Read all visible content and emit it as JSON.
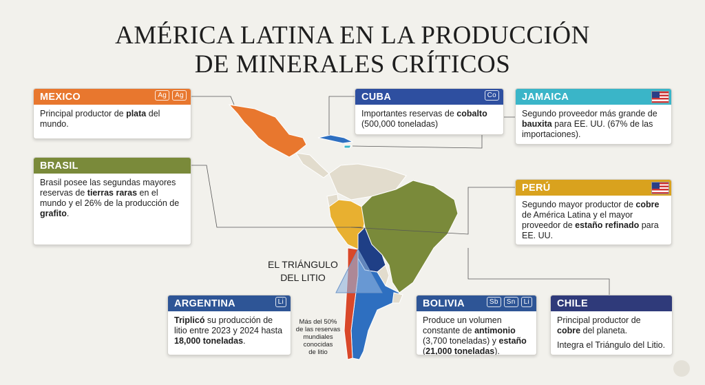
{
  "title": [
    "AMÉRICA LATINA EN LA PRODUCCIÓN",
    "DE MINERALES CRÍTICOS"
  ],
  "triangle": {
    "label": [
      "EL TRIÁNGULO",
      "DEL LITIO"
    ],
    "note": [
      "Más del 50%",
      "de las reservas",
      "mundiales",
      "conocidas",
      "de litio"
    ]
  },
  "cards": [
    {
      "title": "MEXICO",
      "color": "#e8772e",
      "icons": [
        "Ag",
        "Ag"
      ],
      "body": [
        [
          {
            "text": "Principal productor de ",
            "bold": false
          },
          {
            "text": "plata",
            "bold": true
          },
          {
            "text": " del mundo.",
            "bold": false
          }
        ]
      ]
    },
    {
      "title": "BRASIL",
      "color": "#7a8a3a",
      "icons": [],
      "body": [
        [
          {
            "text": "Brasil posee las segundas mayores reservas de ",
            "bold": false
          },
          {
            "text": "tierras raras",
            "bold": true
          },
          {
            "text": " en el mundo y el 26% de la producción de ",
            "bold": false
          },
          {
            "text": "grafito",
            "bold": true
          },
          {
            "text": ".",
            "bold": false
          }
        ]
      ]
    },
    {
      "title": "CUBA",
      "color": "#2e4fa0",
      "icons": [
        "Co"
      ],
      "body": [
        [
          {
            "text": "Importantes reservas de ",
            "bold": false
          },
          {
            "text": "cobalto",
            "bold": true
          },
          {
            "text": " (500,000 toneladas)",
            "bold": false
          }
        ]
      ]
    },
    {
      "title": "JAMAICA",
      "color": "#3ab5c8",
      "icons": [],
      "body": [
        [
          {
            "text": "Segundo proveedor más grande de ",
            "bold": false
          },
          {
            "text": "bauxita",
            "bold": true
          },
          {
            "text": " para EE. UU. (67% de las importaciones).",
            "bold": false
          }
        ]
      ]
    },
    {
      "title": "PERÚ",
      "color": "#d9a21e",
      "icons": [],
      "body": [
        [
          {
            "text": "Segundo mayor productor de ",
            "bold": false
          },
          {
            "text": "cobre",
            "bold": true
          },
          {
            "text": " de América Latina y el mayor proveedor de ",
            "bold": false
          },
          {
            "text": "estaño refinado",
            "bold": true
          },
          {
            "text": " para EE. UU.",
            "bold": false
          }
        ]
      ]
    },
    {
      "title": "ARGENTINA",
      "color": "#2e5596",
      "icons": [
        "Li"
      ],
      "body": [
        [
          {
            "text": "Triplicó",
            "bold": true
          },
          {
            "text": " su producción de litio entre 2023 y 2024 hasta ",
            "bold": false
          },
          {
            "text": "18,000 toneladas",
            "bold": true
          },
          {
            "text": ".",
            "bold": false
          }
        ]
      ]
    },
    {
      "title": "BOLIVIA",
      "color": "#2e5596",
      "icons": [
        "Sb",
        "Sn",
        "Li"
      ],
      "body": [
        [
          {
            "text": "Produce un volumen constante de ",
            "bold": false
          },
          {
            "text": "antimonio",
            "bold": true
          },
          {
            "text": " (3,700 toneladas) y ",
            "bold": false
          },
          {
            "text": "estaño",
            "bold": true
          },
          {
            "text": " (",
            "bold": false
          },
          {
            "text": "21,000 toneladas",
            "bold": true
          },
          {
            "text": ").",
            "bold": false
          }
        ]
      ]
    },
    {
      "title": "CHILE",
      "color": "#2f3a7a",
      "icons": [],
      "body": [
        [
          {
            "text": "Principal productor de ",
            "bold": false
          },
          {
            "text": "cobre",
            "bold": true
          },
          {
            "text": " del planeta.",
            "bold": false
          }
        ],
        [
          {
            "text": "Integra el Triángulo del Litio.",
            "bold": false
          }
        ]
      ]
    }
  ]
}
